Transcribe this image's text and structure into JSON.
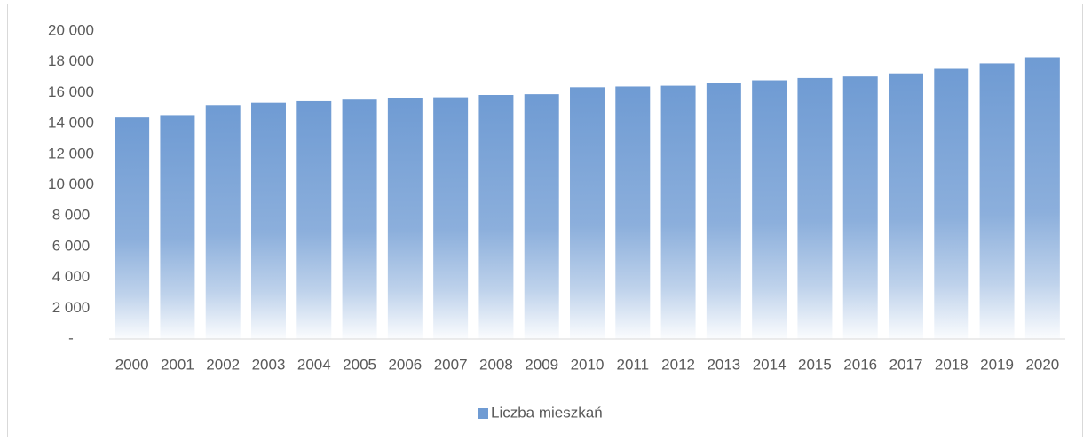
{
  "chart_data": {
    "type": "bar",
    "categories": [
      "2000",
      "2001",
      "2002",
      "2003",
      "2004",
      "2005",
      "2006",
      "2007",
      "2008",
      "2009",
      "2010",
      "2011",
      "2012",
      "2013",
      "2014",
      "2015",
      "2016",
      "2017",
      "2018",
      "2019",
      "2020"
    ],
    "series": [
      {
        "name": "Liczba mieszkań",
        "color": "#6f9bd3",
        "values": [
          14400,
          14500,
          15200,
          15350,
          15450,
          15550,
          15650,
          15700,
          15850,
          15900,
          16350,
          16400,
          16450,
          16600,
          16800,
          16950,
          17050,
          17250,
          17550,
          17900,
          18300
        ]
      }
    ],
    "ylim": [
      0,
      20000
    ],
    "yticks": [
      {
        "value": 0,
        "label": "-"
      },
      {
        "value": 2000,
        "label": "2 000"
      },
      {
        "value": 4000,
        "label": "4 000"
      },
      {
        "value": 6000,
        "label": "6 000"
      },
      {
        "value": 8000,
        "label": "8 000"
      },
      {
        "value": 10000,
        "label": "10 000"
      },
      {
        "value": 12000,
        "label": "12 000"
      },
      {
        "value": 14000,
        "label": "14 000"
      },
      {
        "value": 16000,
        "label": "16 000"
      },
      {
        "value": 18000,
        "label": "18 000"
      },
      {
        "value": 20000,
        "label": "20 000"
      }
    ],
    "grid": false,
    "legend": "bottom"
  }
}
